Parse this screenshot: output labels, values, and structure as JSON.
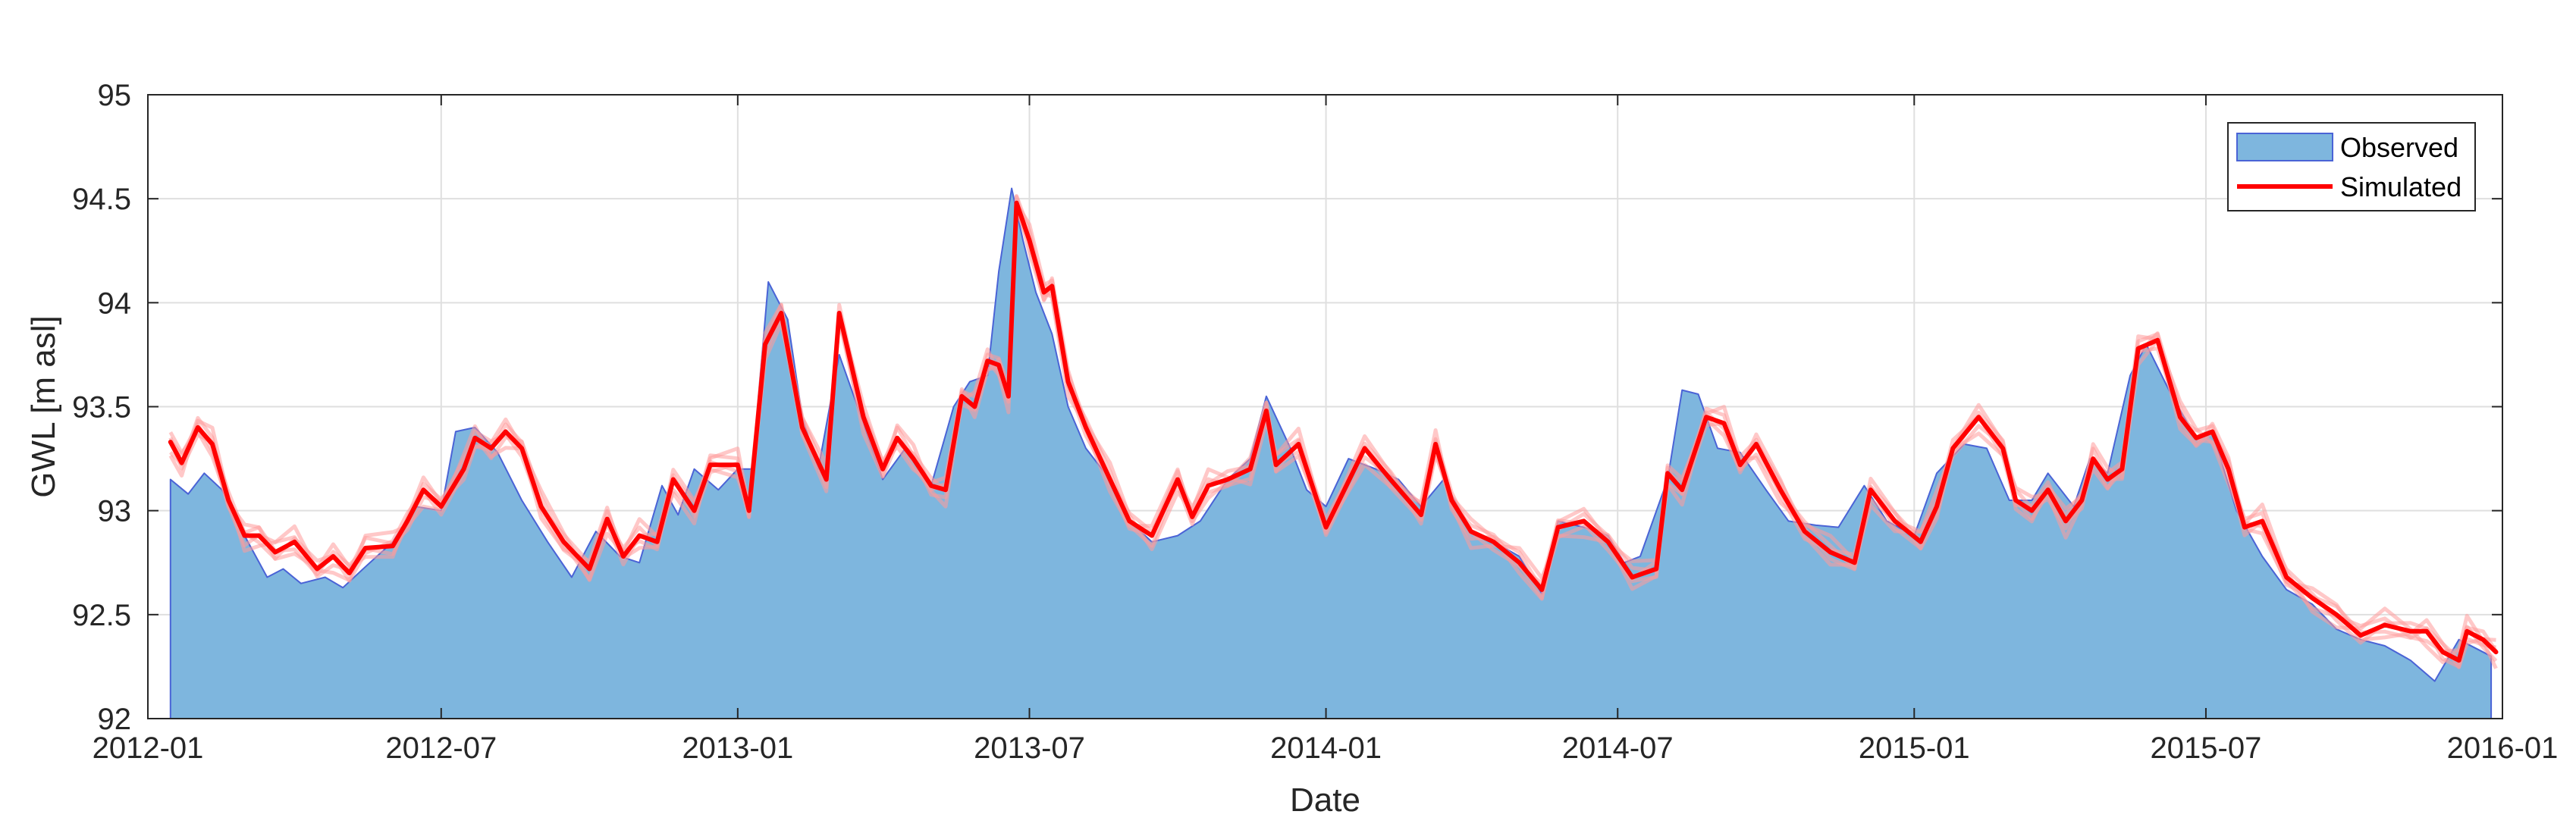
{
  "chart_data": {
    "type": "area",
    "xlabel": "Date",
    "ylabel": "GWL [m asl]",
    "x_tick_labels": [
      "2012-01",
      "2012-07",
      "2013-01",
      "2013-07",
      "2014-01",
      "2014-07",
      "2015-01",
      "2015-07",
      "2016-01"
    ],
    "y_tick_labels": [
      "92",
      "92.5",
      "93",
      "93.5",
      "94",
      "94.5",
      "95"
    ],
    "ylim": [
      92,
      95
    ],
    "xlim": [
      "2012-01-01",
      "2016-01-01"
    ],
    "grid": true,
    "legend_position": "top-right",
    "colors": {
      "observed_fill": "#7eb6de",
      "observed_edge": "#4a63d6",
      "simulated": "#ff0000",
      "ensemble": "#ff9a9a"
    },
    "series": [
      {
        "name": "Observed",
        "style": "area",
        "points": [
          [
            "2012-01-15",
            93.15
          ],
          [
            "2012-01-26",
            93.08
          ],
          [
            "2012-02-05",
            93.18
          ],
          [
            "2012-02-16",
            93.1
          ],
          [
            "2012-03-01",
            92.88
          ],
          [
            "2012-03-15",
            92.68
          ],
          [
            "2012-03-25",
            92.72
          ],
          [
            "2012-04-05",
            92.65
          ],
          [
            "2012-04-20",
            92.68
          ],
          [
            "2012-05-01",
            92.63
          ],
          [
            "2012-05-15",
            92.73
          ],
          [
            "2012-06-01",
            92.85
          ],
          [
            "2012-06-15",
            93.02
          ],
          [
            "2012-07-01",
            93.0
          ],
          [
            "2012-07-10",
            93.38
          ],
          [
            "2012-07-22",
            93.4
          ],
          [
            "2012-08-05",
            93.28
          ],
          [
            "2012-08-20",
            93.05
          ],
          [
            "2012-09-05",
            92.85
          ],
          [
            "2012-09-20",
            92.68
          ],
          [
            "2012-10-05",
            92.9
          ],
          [
            "2012-10-20",
            92.78
          ],
          [
            "2012-11-01",
            92.75
          ],
          [
            "2012-11-15",
            93.12
          ],
          [
            "2012-11-25",
            92.98
          ],
          [
            "2012-12-05",
            93.2
          ],
          [
            "2012-12-20",
            93.1
          ],
          [
            "2013-01-01",
            93.2
          ],
          [
            "2013-01-10",
            93.2
          ],
          [
            "2013-01-20",
            94.1
          ],
          [
            "2013-02-01",
            93.92
          ],
          [
            "2013-02-10",
            93.45
          ],
          [
            "2013-02-20",
            93.2
          ],
          [
            "2013-03-05",
            93.75
          ],
          [
            "2013-03-20",
            93.42
          ],
          [
            "2013-04-01",
            93.15
          ],
          [
            "2013-04-15",
            93.3
          ],
          [
            "2013-05-01",
            93.12
          ],
          [
            "2013-05-15",
            93.5
          ],
          [
            "2013-05-25",
            93.62
          ],
          [
            "2013-06-05",
            93.65
          ],
          [
            "2013-06-12",
            94.15
          ],
          [
            "2013-06-20",
            94.55
          ],
          [
            "2013-06-27",
            94.3
          ],
          [
            "2013-07-05",
            94.05
          ],
          [
            "2013-07-15",
            93.85
          ],
          [
            "2013-07-25",
            93.5
          ],
          [
            "2013-08-05",
            93.3
          ],
          [
            "2013-08-20",
            93.15
          ],
          [
            "2013-09-01",
            92.95
          ],
          [
            "2013-09-15",
            92.85
          ],
          [
            "2013-10-01",
            92.88
          ],
          [
            "2013-10-15",
            92.95
          ],
          [
            "2013-11-01",
            93.15
          ],
          [
            "2013-11-15",
            93.25
          ],
          [
            "2013-11-25",
            93.55
          ],
          [
            "2013-12-10",
            93.3
          ],
          [
            "2013-12-20",
            93.1
          ],
          [
            "2014-01-01",
            93.02
          ],
          [
            "2014-01-15",
            93.25
          ],
          [
            "2014-02-01",
            93.2
          ],
          [
            "2014-02-15",
            93.15
          ],
          [
            "2014-03-01",
            93.02
          ],
          [
            "2014-03-15",
            93.15
          ],
          [
            "2014-04-01",
            92.9
          ],
          [
            "2014-04-15",
            92.85
          ],
          [
            "2014-05-01",
            92.78
          ],
          [
            "2014-05-15",
            92.6
          ],
          [
            "2014-05-25",
            92.95
          ],
          [
            "2014-06-10",
            92.92
          ],
          [
            "2014-06-25",
            92.88
          ],
          [
            "2014-07-05",
            92.75
          ],
          [
            "2014-07-15",
            92.78
          ],
          [
            "2014-08-01",
            93.15
          ],
          [
            "2014-08-10",
            93.58
          ],
          [
            "2014-08-20",
            93.56
          ],
          [
            "2014-09-01",
            93.3
          ],
          [
            "2014-09-15",
            93.28
          ],
          [
            "2014-10-01",
            93.1
          ],
          [
            "2014-10-15",
            92.95
          ],
          [
            "2014-11-01",
            92.93
          ],
          [
            "2014-11-15",
            92.92
          ],
          [
            "2014-12-01",
            93.12
          ],
          [
            "2014-12-15",
            92.95
          ],
          [
            "2015-01-01",
            92.88
          ],
          [
            "2015-01-15",
            93.18
          ],
          [
            "2015-02-01",
            93.32
          ],
          [
            "2015-02-15",
            93.3
          ],
          [
            "2015-03-01",
            93.05
          ],
          [
            "2015-03-15",
            93.05
          ],
          [
            "2015-03-25",
            93.18
          ],
          [
            "2015-04-10",
            93.02
          ],
          [
            "2015-04-20",
            93.25
          ],
          [
            "2015-05-01",
            93.18
          ],
          [
            "2015-05-15",
            93.65
          ],
          [
            "2015-05-25",
            93.8
          ],
          [
            "2015-06-10",
            93.55
          ],
          [
            "2015-06-25",
            93.35
          ],
          [
            "2015-07-05",
            93.38
          ],
          [
            "2015-07-20",
            93.0
          ],
          [
            "2015-08-05",
            92.78
          ],
          [
            "2015-08-20",
            92.62
          ],
          [
            "2015-09-05",
            92.55
          ],
          [
            "2015-09-20",
            92.43
          ],
          [
            "2015-10-05",
            92.38
          ],
          [
            "2015-10-20",
            92.35
          ],
          [
            "2015-11-05",
            92.28
          ],
          [
            "2015-11-20",
            92.18
          ],
          [
            "2015-12-05",
            92.38
          ],
          [
            "2015-12-25",
            92.3
          ]
        ]
      },
      {
        "name": "Simulated",
        "style": "line",
        "points": [
          [
            "2012-01-15",
            93.33
          ],
          [
            "2012-01-22",
            93.23
          ],
          [
            "2012-02-01",
            93.4
          ],
          [
            "2012-02-10",
            93.32
          ],
          [
            "2012-02-20",
            93.05
          ],
          [
            "2012-03-01",
            92.88
          ],
          [
            "2012-03-10",
            92.88
          ],
          [
            "2012-03-20",
            92.8
          ],
          [
            "2012-04-01",
            92.85
          ],
          [
            "2012-04-15",
            92.72
          ],
          [
            "2012-04-25",
            92.78
          ],
          [
            "2012-05-05",
            92.7
          ],
          [
            "2012-05-15",
            92.82
          ],
          [
            "2012-06-01",
            92.83
          ],
          [
            "2012-06-10",
            92.95
          ],
          [
            "2012-06-20",
            93.1
          ],
          [
            "2012-07-01",
            93.02
          ],
          [
            "2012-07-15",
            93.2
          ],
          [
            "2012-07-22",
            93.35
          ],
          [
            "2012-08-01",
            93.3
          ],
          [
            "2012-08-10",
            93.38
          ],
          [
            "2012-08-20",
            93.3
          ],
          [
            "2012-09-01",
            93.02
          ],
          [
            "2012-09-15",
            92.85
          ],
          [
            "2012-10-01",
            92.72
          ],
          [
            "2012-10-12",
            92.96
          ],
          [
            "2012-10-22",
            92.78
          ],
          [
            "2012-11-01",
            92.88
          ],
          [
            "2012-11-12",
            92.85
          ],
          [
            "2012-11-22",
            93.15
          ],
          [
            "2012-12-05",
            93.0
          ],
          [
            "2012-12-15",
            93.22
          ],
          [
            "2013-01-01",
            93.22
          ],
          [
            "2013-01-08",
            93.0
          ],
          [
            "2013-01-18",
            93.8
          ],
          [
            "2013-01-28",
            93.95
          ],
          [
            "2013-02-10",
            93.4
          ],
          [
            "2013-02-25",
            93.15
          ],
          [
            "2013-03-05",
            93.95
          ],
          [
            "2013-03-20",
            93.45
          ],
          [
            "2013-04-01",
            93.2
          ],
          [
            "2013-04-10",
            93.35
          ],
          [
            "2013-04-20",
            93.25
          ],
          [
            "2013-05-01",
            93.12
          ],
          [
            "2013-05-10",
            93.1
          ],
          [
            "2013-05-20",
            93.55
          ],
          [
            "2013-05-28",
            93.5
          ],
          [
            "2013-06-05",
            93.72
          ],
          [
            "2013-06-12",
            93.7
          ],
          [
            "2013-06-18",
            93.55
          ],
          [
            "2013-06-23",
            94.48
          ],
          [
            "2013-07-01",
            94.3
          ],
          [
            "2013-07-10",
            94.05
          ],
          [
            "2013-07-15",
            94.08
          ],
          [
            "2013-07-25",
            93.62
          ],
          [
            "2013-08-05",
            93.4
          ],
          [
            "2013-08-20",
            93.15
          ],
          [
            "2013-09-01",
            92.95
          ],
          [
            "2013-09-15",
            92.88
          ],
          [
            "2013-10-01",
            93.15
          ],
          [
            "2013-10-10",
            92.97
          ],
          [
            "2013-10-20",
            93.12
          ],
          [
            "2013-11-01",
            93.15
          ],
          [
            "2013-11-15",
            93.2
          ],
          [
            "2013-11-25",
            93.48
          ],
          [
            "2013-12-01",
            93.22
          ],
          [
            "2013-12-15",
            93.32
          ],
          [
            "2014-01-01",
            92.92
          ],
          [
            "2014-01-25",
            93.3
          ],
          [
            "2014-02-10",
            93.15
          ],
          [
            "2014-03-01",
            92.98
          ],
          [
            "2014-03-10",
            93.32
          ],
          [
            "2014-03-20",
            93.05
          ],
          [
            "2014-04-01",
            92.9
          ],
          [
            "2014-04-15",
            92.85
          ],
          [
            "2014-05-01",
            92.75
          ],
          [
            "2014-05-15",
            92.62
          ],
          [
            "2014-05-25",
            92.92
          ],
          [
            "2014-06-10",
            92.95
          ],
          [
            "2014-06-25",
            92.85
          ],
          [
            "2014-07-10",
            92.68
          ],
          [
            "2014-07-25",
            92.72
          ],
          [
            "2014-08-01",
            93.18
          ],
          [
            "2014-08-10",
            93.1
          ],
          [
            "2014-08-25",
            93.45
          ],
          [
            "2014-09-05",
            93.42
          ],
          [
            "2014-09-15",
            93.22
          ],
          [
            "2014-09-25",
            93.32
          ],
          [
            "2014-10-10",
            93.1
          ],
          [
            "2014-10-25",
            92.9
          ],
          [
            "2014-11-10",
            92.8
          ],
          [
            "2014-11-25",
            92.75
          ],
          [
            "2014-12-05",
            93.1
          ],
          [
            "2014-12-20",
            92.95
          ],
          [
            "2015-01-05",
            92.85
          ],
          [
            "2015-01-15",
            93.02
          ],
          [
            "2015-01-25",
            93.3
          ],
          [
            "2015-02-10",
            93.45
          ],
          [
            "2015-02-25",
            93.3
          ],
          [
            "2015-03-05",
            93.05
          ],
          [
            "2015-03-15",
            93.0
          ],
          [
            "2015-03-25",
            93.1
          ],
          [
            "2015-04-05",
            92.95
          ],
          [
            "2015-04-15",
            93.05
          ],
          [
            "2015-04-22",
            93.25
          ],
          [
            "2015-05-01",
            93.15
          ],
          [
            "2015-05-10",
            93.2
          ],
          [
            "2015-05-20",
            93.78
          ],
          [
            "2015-06-01",
            93.82
          ],
          [
            "2015-06-15",
            93.45
          ],
          [
            "2015-06-25",
            93.35
          ],
          [
            "2015-07-05",
            93.38
          ],
          [
            "2015-07-15",
            93.2
          ],
          [
            "2015-07-25",
            92.92
          ],
          [
            "2015-08-05",
            92.95
          ],
          [
            "2015-08-20",
            92.68
          ],
          [
            "2015-09-05",
            92.58
          ],
          [
            "2015-09-20",
            92.5
          ],
          [
            "2015-10-05",
            92.4
          ],
          [
            "2015-10-20",
            92.45
          ],
          [
            "2015-11-05",
            92.42
          ],
          [
            "2015-11-15",
            92.42
          ],
          [
            "2015-11-25",
            92.32
          ],
          [
            "2015-12-05",
            92.28
          ],
          [
            "2015-12-10",
            92.42
          ],
          [
            "2015-12-20",
            92.38
          ],
          [
            "2015-12-28",
            92.32
          ]
        ]
      }
    ]
  }
}
